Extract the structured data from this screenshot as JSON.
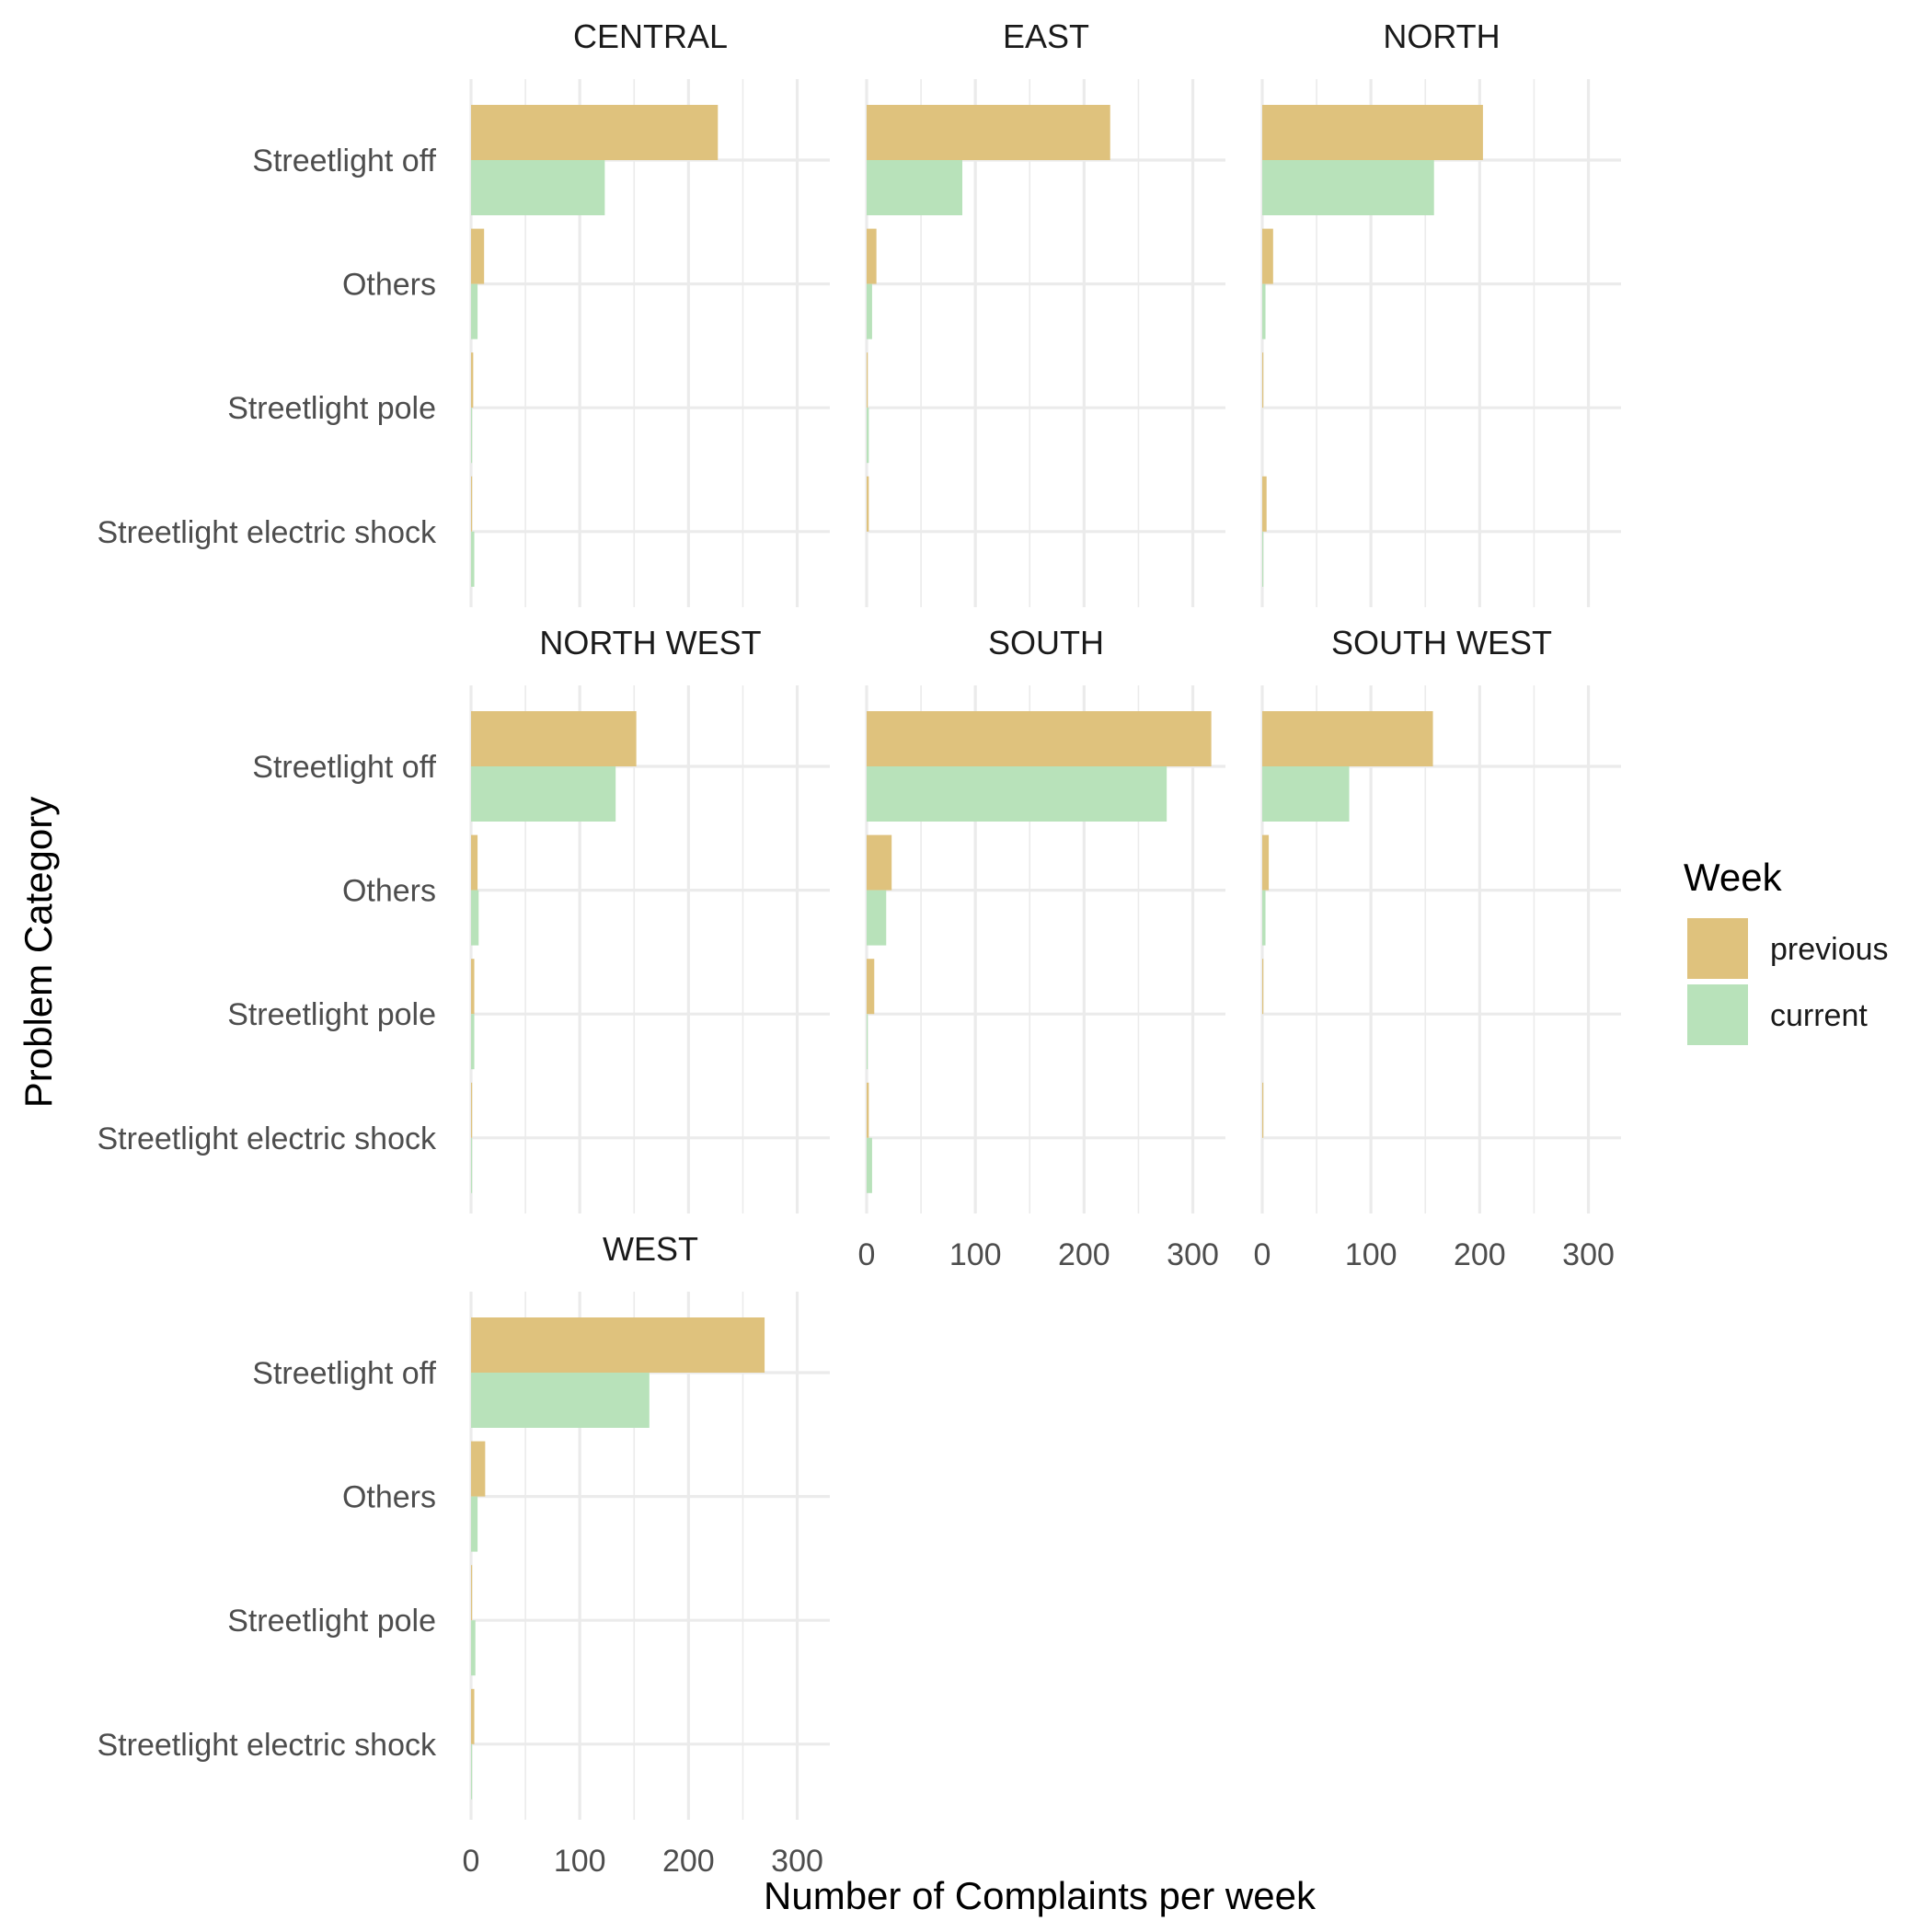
{
  "chart_data": {
    "type": "bar",
    "orientation": "horizontal",
    "layout": "facets",
    "xlabel": "Number of Complaints per week",
    "ylabel": "Problem Category",
    "xlim": [
      0,
      330
    ],
    "x_ticks": [
      0,
      100,
      200,
      300
    ],
    "categories": [
      "Streetlight off",
      "Others",
      "Streetlight pole",
      "Streetlight electric shock"
    ],
    "legend": {
      "title": "Week",
      "position": "right",
      "entries": [
        {
          "label": "previous",
          "color": "#dfc27d"
        },
        {
          "label": "current",
          "color": "#b8e2ba"
        }
      ]
    },
    "grid": true,
    "facets": [
      {
        "name": "CENTRAL",
        "series": [
          {
            "name": "previous",
            "values": [
              227,
              12,
              2,
              1
            ]
          },
          {
            "name": "current",
            "values": [
              123,
              6,
              1,
              3
            ]
          }
        ]
      },
      {
        "name": "EAST",
        "series": [
          {
            "name": "previous",
            "values": [
              224,
              9,
              1,
              2
            ]
          },
          {
            "name": "current",
            "values": [
              88,
              5,
              2,
              0
            ]
          }
        ]
      },
      {
        "name": "NORTH",
        "series": [
          {
            "name": "previous",
            "values": [
              203,
              10,
              1,
              4
            ]
          },
          {
            "name": "current",
            "values": [
              158,
              3,
              0,
              1
            ]
          }
        ]
      },
      {
        "name": "NORTH WEST",
        "series": [
          {
            "name": "previous",
            "values": [
              152,
              6,
              3,
              1
            ]
          },
          {
            "name": "current",
            "values": [
              133,
              7,
              3,
              1
            ]
          }
        ]
      },
      {
        "name": "SOUTH",
        "series": [
          {
            "name": "previous",
            "values": [
              317,
              23,
              7,
              2
            ]
          },
          {
            "name": "current",
            "values": [
              276,
              18,
              1,
              5
            ]
          }
        ]
      },
      {
        "name": "SOUTH WEST",
        "series": [
          {
            "name": "previous",
            "values": [
              157,
              6,
              1,
              1
            ]
          },
          {
            "name": "current",
            "values": [
              80,
              3,
              0,
              0
            ]
          }
        ]
      },
      {
        "name": "WEST",
        "series": [
          {
            "name": "previous",
            "values": [
              270,
              13,
              1,
              3
            ]
          },
          {
            "name": "current",
            "values": [
              164,
              6,
              4,
              1
            ]
          }
        ]
      }
    ]
  }
}
